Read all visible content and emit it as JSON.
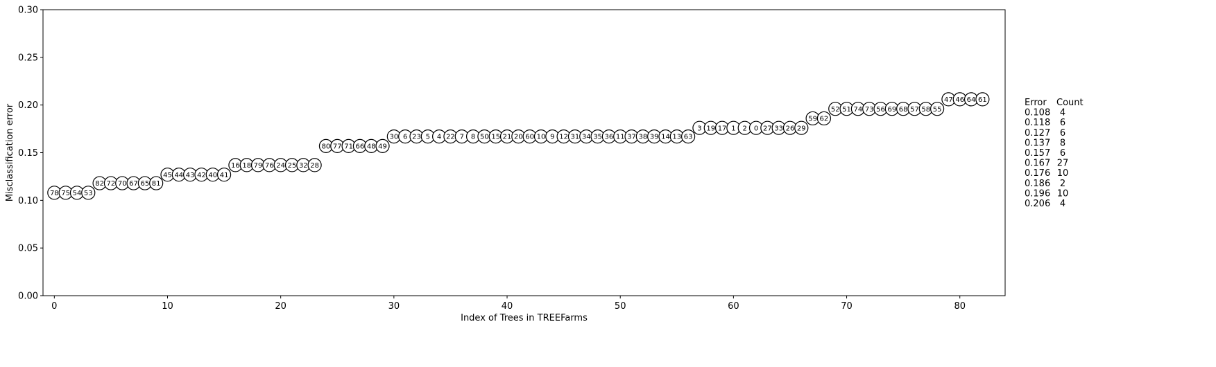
{
  "chart_data": {
    "type": "scatter",
    "xlabel": "Index of Trees in TREEFarms",
    "ylabel": "Misclassification error",
    "xlim": [
      -1,
      84
    ],
    "ylim": [
      0,
      0.3
    ],
    "x_ticks": [
      0,
      10,
      20,
      30,
      40,
      50,
      60,
      70,
      80
    ],
    "y_ticks": [
      "0.00",
      "0.05",
      "0.10",
      "0.15",
      "0.20",
      "0.25",
      "0.30"
    ],
    "grid": false,
    "points": [
      {
        "x": 0,
        "y": 0.108,
        "label": "78"
      },
      {
        "x": 1,
        "y": 0.108,
        "label": "75"
      },
      {
        "x": 2,
        "y": 0.108,
        "label": "54"
      },
      {
        "x": 3,
        "y": 0.108,
        "label": "53"
      },
      {
        "x": 4,
        "y": 0.118,
        "label": "82"
      },
      {
        "x": 5,
        "y": 0.118,
        "label": "72"
      },
      {
        "x": 6,
        "y": 0.118,
        "label": "70"
      },
      {
        "x": 7,
        "y": 0.118,
        "label": "67"
      },
      {
        "x": 8,
        "y": 0.118,
        "label": "65"
      },
      {
        "x": 9,
        "y": 0.118,
        "label": "81"
      },
      {
        "x": 10,
        "y": 0.127,
        "label": "45"
      },
      {
        "x": 11,
        "y": 0.127,
        "label": "44"
      },
      {
        "x": 12,
        "y": 0.127,
        "label": "43"
      },
      {
        "x": 13,
        "y": 0.127,
        "label": "42"
      },
      {
        "x": 14,
        "y": 0.127,
        "label": "40"
      },
      {
        "x": 15,
        "y": 0.127,
        "label": "41"
      },
      {
        "x": 16,
        "y": 0.137,
        "label": "16"
      },
      {
        "x": 17,
        "y": 0.137,
        "label": "18"
      },
      {
        "x": 18,
        "y": 0.137,
        "label": "79"
      },
      {
        "x": 19,
        "y": 0.137,
        "label": "76"
      },
      {
        "x": 20,
        "y": 0.137,
        "label": "24"
      },
      {
        "x": 21,
        "y": 0.137,
        "label": "25"
      },
      {
        "x": 22,
        "y": 0.137,
        "label": "32"
      },
      {
        "x": 23,
        "y": 0.137,
        "label": "28"
      },
      {
        "x": 24,
        "y": 0.157,
        "label": "80"
      },
      {
        "x": 25,
        "y": 0.157,
        "label": "77"
      },
      {
        "x": 26,
        "y": 0.157,
        "label": "71"
      },
      {
        "x": 27,
        "y": 0.157,
        "label": "66"
      },
      {
        "x": 28,
        "y": 0.157,
        "label": "48"
      },
      {
        "x": 29,
        "y": 0.157,
        "label": "49"
      },
      {
        "x": 30,
        "y": 0.167,
        "label": "30"
      },
      {
        "x": 31,
        "y": 0.167,
        "label": "6"
      },
      {
        "x": 32,
        "y": 0.167,
        "label": "23"
      },
      {
        "x": 33,
        "y": 0.167,
        "label": "5"
      },
      {
        "x": 34,
        "y": 0.167,
        "label": "4"
      },
      {
        "x": 35,
        "y": 0.167,
        "label": "22"
      },
      {
        "x": 36,
        "y": 0.167,
        "label": "7"
      },
      {
        "x": 37,
        "y": 0.167,
        "label": "8"
      },
      {
        "x": 38,
        "y": 0.167,
        "label": "50"
      },
      {
        "x": 39,
        "y": 0.167,
        "label": "15"
      },
      {
        "x": 40,
        "y": 0.167,
        "label": "21"
      },
      {
        "x": 41,
        "y": 0.167,
        "label": "20"
      },
      {
        "x": 42,
        "y": 0.167,
        "label": "60"
      },
      {
        "x": 43,
        "y": 0.167,
        "label": "10"
      },
      {
        "x": 44,
        "y": 0.167,
        "label": "9"
      },
      {
        "x": 45,
        "y": 0.167,
        "label": "12"
      },
      {
        "x": 46,
        "y": 0.167,
        "label": "31"
      },
      {
        "x": 47,
        "y": 0.167,
        "label": "34"
      },
      {
        "x": 48,
        "y": 0.167,
        "label": "35"
      },
      {
        "x": 49,
        "y": 0.167,
        "label": "36"
      },
      {
        "x": 50,
        "y": 0.167,
        "label": "11"
      },
      {
        "x": 51,
        "y": 0.167,
        "label": "37"
      },
      {
        "x": 52,
        "y": 0.167,
        "label": "38"
      },
      {
        "x": 53,
        "y": 0.167,
        "label": "39"
      },
      {
        "x": 54,
        "y": 0.167,
        "label": "14"
      },
      {
        "x": 55,
        "y": 0.167,
        "label": "13"
      },
      {
        "x": 56,
        "y": 0.167,
        "label": "63"
      },
      {
        "x": 57,
        "y": 0.176,
        "label": "3"
      },
      {
        "x": 58,
        "y": 0.176,
        "label": "19"
      },
      {
        "x": 59,
        "y": 0.176,
        "label": "17"
      },
      {
        "x": 60,
        "y": 0.176,
        "label": "1"
      },
      {
        "x": 61,
        "y": 0.176,
        "label": "2"
      },
      {
        "x": 62,
        "y": 0.176,
        "label": "0"
      },
      {
        "x": 63,
        "y": 0.176,
        "label": "27"
      },
      {
        "x": 64,
        "y": 0.176,
        "label": "33"
      },
      {
        "x": 65,
        "y": 0.176,
        "label": "26"
      },
      {
        "x": 66,
        "y": 0.176,
        "label": "29"
      },
      {
        "x": 67,
        "y": 0.186,
        "label": "59"
      },
      {
        "x": 68,
        "y": 0.186,
        "label": "62"
      },
      {
        "x": 69,
        "y": 0.196,
        "label": "52"
      },
      {
        "x": 70,
        "y": 0.196,
        "label": "51"
      },
      {
        "x": 71,
        "y": 0.196,
        "label": "74"
      },
      {
        "x": 72,
        "y": 0.196,
        "label": "73"
      },
      {
        "x": 73,
        "y": 0.196,
        "label": "56"
      },
      {
        "x": 74,
        "y": 0.196,
        "label": "69"
      },
      {
        "x": 75,
        "y": 0.196,
        "label": "68"
      },
      {
        "x": 76,
        "y": 0.196,
        "label": "57"
      },
      {
        "x": 77,
        "y": 0.196,
        "label": "58"
      },
      {
        "x": 78,
        "y": 0.196,
        "label": "55"
      },
      {
        "x": 79,
        "y": 0.206,
        "label": "47"
      },
      {
        "x": 80,
        "y": 0.206,
        "label": "46"
      },
      {
        "x": 81,
        "y": 0.206,
        "label": "64"
      },
      {
        "x": 82,
        "y": 0.206,
        "label": "61"
      }
    ],
    "marker_style": {
      "fill": "#ffffff",
      "stroke": "#000000"
    },
    "summary_table": {
      "headers": [
        "Error",
        "Count"
      ],
      "rows": [
        [
          "0.108",
          "4"
        ],
        [
          "0.118",
          "6"
        ],
        [
          "0.127",
          "6"
        ],
        [
          "0.137",
          "8"
        ],
        [
          "0.157",
          "6"
        ],
        [
          "0.167",
          "27"
        ],
        [
          "0.176",
          "10"
        ],
        [
          "0.186",
          "2"
        ],
        [
          "0.196",
          "10"
        ],
        [
          "0.206",
          "4"
        ]
      ]
    }
  }
}
